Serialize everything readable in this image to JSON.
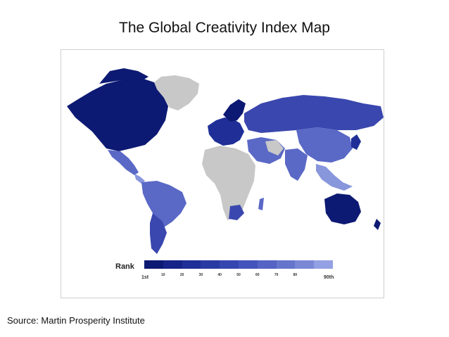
{
  "title": "The Global Creativity Index Map",
  "source": "Source: Martin Prosperity Institute",
  "legend": {
    "title": "Rank",
    "start_label": "1st",
    "end_label": "90th",
    "tick_labels": [
      "10",
      "20",
      "30",
      "40",
      "50",
      "60",
      "70",
      "80"
    ],
    "colors": [
      "#0d1a73",
      "#162488",
      "#1f2f97",
      "#2a3aa3",
      "#3646b0",
      "#4453bb",
      "#5463c4",
      "#6675cc",
      "#7a88d6",
      "#93a0e3"
    ]
  },
  "colors": {
    "no_data": "#c8c8c8",
    "top_rank": "#0d1a73",
    "high_rank": "#1f2f97",
    "mid_rank": "#3a47ae",
    "low_rank": "#5a68c6",
    "bottom_rank": "#8896dc"
  }
}
